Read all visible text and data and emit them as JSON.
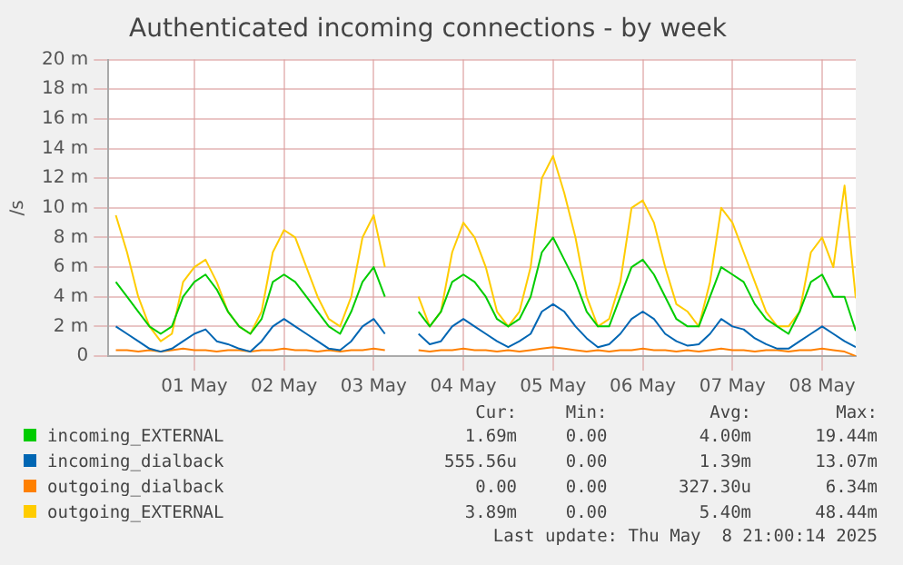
{
  "chart_data": {
    "type": "line",
    "title": "Authenticated incoming connections - by week",
    "ylabel": "/s",
    "x": [
      "2025-04-30T15:00",
      "2025-04-30T18:00",
      "2025-04-30T21:00",
      "2025-05-01T00:00",
      "2025-05-01T03:00",
      "2025-05-01T06:00",
      "2025-05-01T09:00",
      "2025-05-01T12:00",
      "2025-05-01T15:00",
      "2025-05-01T18:00",
      "2025-05-01T21:00",
      "2025-05-02T00:00",
      "2025-05-02T03:00",
      "2025-05-02T06:00",
      "2025-05-02T09:00",
      "2025-05-02T12:00",
      "2025-05-02T15:00",
      "2025-05-02T18:00",
      "2025-05-02T21:00",
      "2025-05-03T00:00",
      "2025-05-03T03:00",
      "2025-05-03T06:00",
      "2025-05-03T09:00",
      "2025-05-03T12:00",
      "2025-05-03T15:00",
      "2025-05-03T18:00",
      "2025-05-03T21:00",
      "2025-05-04T00:00",
      "2025-05-04T03:00",
      "2025-05-04T06:00",
      "2025-05-04T09:00",
      "2025-05-04T12:00",
      "2025-05-04T15:00",
      "2025-05-04T18:00",
      "2025-05-04T21:00",
      "2025-05-05T00:00",
      "2025-05-05T03:00",
      "2025-05-05T06:00",
      "2025-05-05T09:00",
      "2025-05-05T12:00",
      "2025-05-05T15:00",
      "2025-05-05T18:00",
      "2025-05-05T21:00",
      "2025-05-06T00:00",
      "2025-05-06T03:00",
      "2025-05-06T06:00",
      "2025-05-06T09:00",
      "2025-05-06T12:00",
      "2025-05-06T15:00",
      "2025-05-06T18:00",
      "2025-05-06T21:00",
      "2025-05-07T00:00",
      "2025-05-07T03:00",
      "2025-05-07T06:00",
      "2025-05-07T09:00",
      "2025-05-07T12:00",
      "2025-05-07T15:00",
      "2025-05-07T18:00",
      "2025-05-07T21:00",
      "2025-05-08T00:00",
      "2025-05-08T03:00",
      "2025-05-08T06:00",
      "2025-05-08T09:00",
      "2025-05-08T12:00",
      "2025-05-08T15:00",
      "2025-05-08T18:00",
      "2025-05-08T21:00"
    ],
    "series": [
      {
        "name": "incoming_EXTERNAL",
        "color": "#00cc00",
        "values": [
          5,
          4,
          3,
          2,
          1.5,
          2,
          4,
          5,
          5.5,
          4.5,
          3,
          2,
          1.5,
          2.5,
          5,
          5.5,
          5,
          4,
          3,
          2,
          1.5,
          3,
          5,
          6,
          4,
          null,
          null,
          3,
          2,
          3,
          5,
          5.5,
          5,
          4,
          2.5,
          2,
          2.5,
          4,
          7,
          8,
          6.5,
          5,
          3,
          2,
          2,
          4,
          6,
          6.5,
          5.5,
          4,
          2.5,
          2,
          2,
          4,
          6,
          5.5,
          5,
          3.5,
          2.5,
          2,
          1.5,
          3,
          5,
          5.5,
          4,
          4,
          1.7
        ]
      },
      {
        "name": "incoming_dialback",
        "color": "#0066b3",
        "values": [
          2,
          1.5,
          1,
          0.5,
          0.3,
          0.5,
          1,
          1.5,
          1.8,
          1,
          0.8,
          0.5,
          0.3,
          1,
          2,
          2.5,
          2,
          1.5,
          1,
          0.5,
          0.4,
          1,
          2,
          2.5,
          1.5,
          null,
          null,
          1.5,
          0.8,
          1,
          2,
          2.5,
          2,
          1.5,
          1,
          0.6,
          1,
          1.5,
          3,
          3.5,
          3,
          2,
          1.2,
          0.6,
          0.8,
          1.5,
          2.5,
          3,
          2.5,
          1.5,
          1,
          0.7,
          0.8,
          1.5,
          2.5,
          2,
          1.8,
          1.2,
          0.8,
          0.5,
          0.5,
          1,
          1.5,
          2,
          1.5,
          1,
          0.6
        ]
      },
      {
        "name": "outgoing_dialback",
        "color": "#ff8000",
        "values": [
          0.4,
          0.4,
          0.3,
          0.4,
          0.3,
          0.4,
          0.5,
          0.4,
          0.4,
          0.3,
          0.4,
          0.4,
          0.3,
          0.4,
          0.4,
          0.5,
          0.4,
          0.4,
          0.3,
          0.4,
          0.3,
          0.4,
          0.4,
          0.5,
          0.4,
          null,
          null,
          0.4,
          0.3,
          0.4,
          0.4,
          0.5,
          0.4,
          0.4,
          0.3,
          0.4,
          0.3,
          0.4,
          0.5,
          0.6,
          0.5,
          0.4,
          0.3,
          0.4,
          0.3,
          0.4,
          0.4,
          0.5,
          0.4,
          0.4,
          0.3,
          0.4,
          0.3,
          0.4,
          0.5,
          0.4,
          0.4,
          0.3,
          0.4,
          0.4,
          0.3,
          0.4,
          0.4,
          0.5,
          0.4,
          0.3,
          0
        ]
      },
      {
        "name": "outgoing_EXTERNAL",
        "color": "#ffcc00",
        "values": [
          9.5,
          7,
          4,
          2,
          1,
          1.5,
          5,
          6,
          6.5,
          5,
          3,
          2,
          1.5,
          3,
          7,
          8.5,
          8,
          6,
          4,
          2.5,
          2,
          4,
          8,
          9.5,
          6,
          null,
          null,
          4,
          2,
          3,
          7,
          9,
          8,
          6,
          3,
          2,
          3,
          6,
          12,
          13.5,
          11,
          8,
          4,
          2,
          2.5,
          5,
          10,
          10.5,
          9,
          6,
          3.5,
          3,
          2,
          5,
          10,
          9,
          7,
          5,
          3,
          2,
          2,
          3,
          7,
          8,
          6,
          11.5,
          3.9
        ]
      }
    ],
    "xlim": [
      "2025-04-30T13:00",
      "2025-05-08T21:00"
    ],
    "xticks": [
      {
        "value": "2025-05-01T12:00",
        "label": "01 May"
      },
      {
        "value": "2025-05-02T12:00",
        "label": "02 May"
      },
      {
        "value": "2025-05-03T12:00",
        "label": "03 May"
      },
      {
        "value": "2025-05-04T12:00",
        "label": "04 May"
      },
      {
        "value": "2025-05-05T12:00",
        "label": "05 May"
      },
      {
        "value": "2025-05-06T12:00",
        "label": "06 May"
      },
      {
        "value": "2025-05-07T12:00",
        "label": "07 May"
      },
      {
        "value": "2025-05-08T12:00",
        "label": "08 May"
      }
    ],
    "ylim": [
      0,
      20
    ],
    "yticks": [
      0,
      {
        "value": 2,
        "label": "2 m"
      },
      {
        "value": 4,
        "label": "4 m"
      },
      {
        "value": 6,
        "label": "6 m"
      },
      {
        "value": 8,
        "label": "8 m"
      },
      {
        "value": 10,
        "label": "10 m"
      },
      {
        "value": 12,
        "label": "12 m"
      },
      {
        "value": 14,
        "label": "14 m"
      },
      {
        "value": 16,
        "label": "16 m"
      },
      {
        "value": 18,
        "label": "18 m"
      },
      {
        "value": 20,
        "label": "20 m"
      }
    ],
    "grid": true,
    "legend": "bottom",
    "marker": "none",
    "line_style": "solid",
    "annotations": [
      "Cur:",
      "Min:",
      "Avg:",
      "Max:",
      "1.69m",
      "0.00",
      "4.00m",
      "19.44m",
      "555.56u",
      "0.00",
      "1.39m",
      "13.07m",
      "0.00",
      "0.00",
      "327.30u",
      "6.34m",
      "3.89m",
      "0.00",
      "5.40m",
      "48.44m",
      "Last update: Thu May  8 21:00:14 2025"
    ]
  }
}
